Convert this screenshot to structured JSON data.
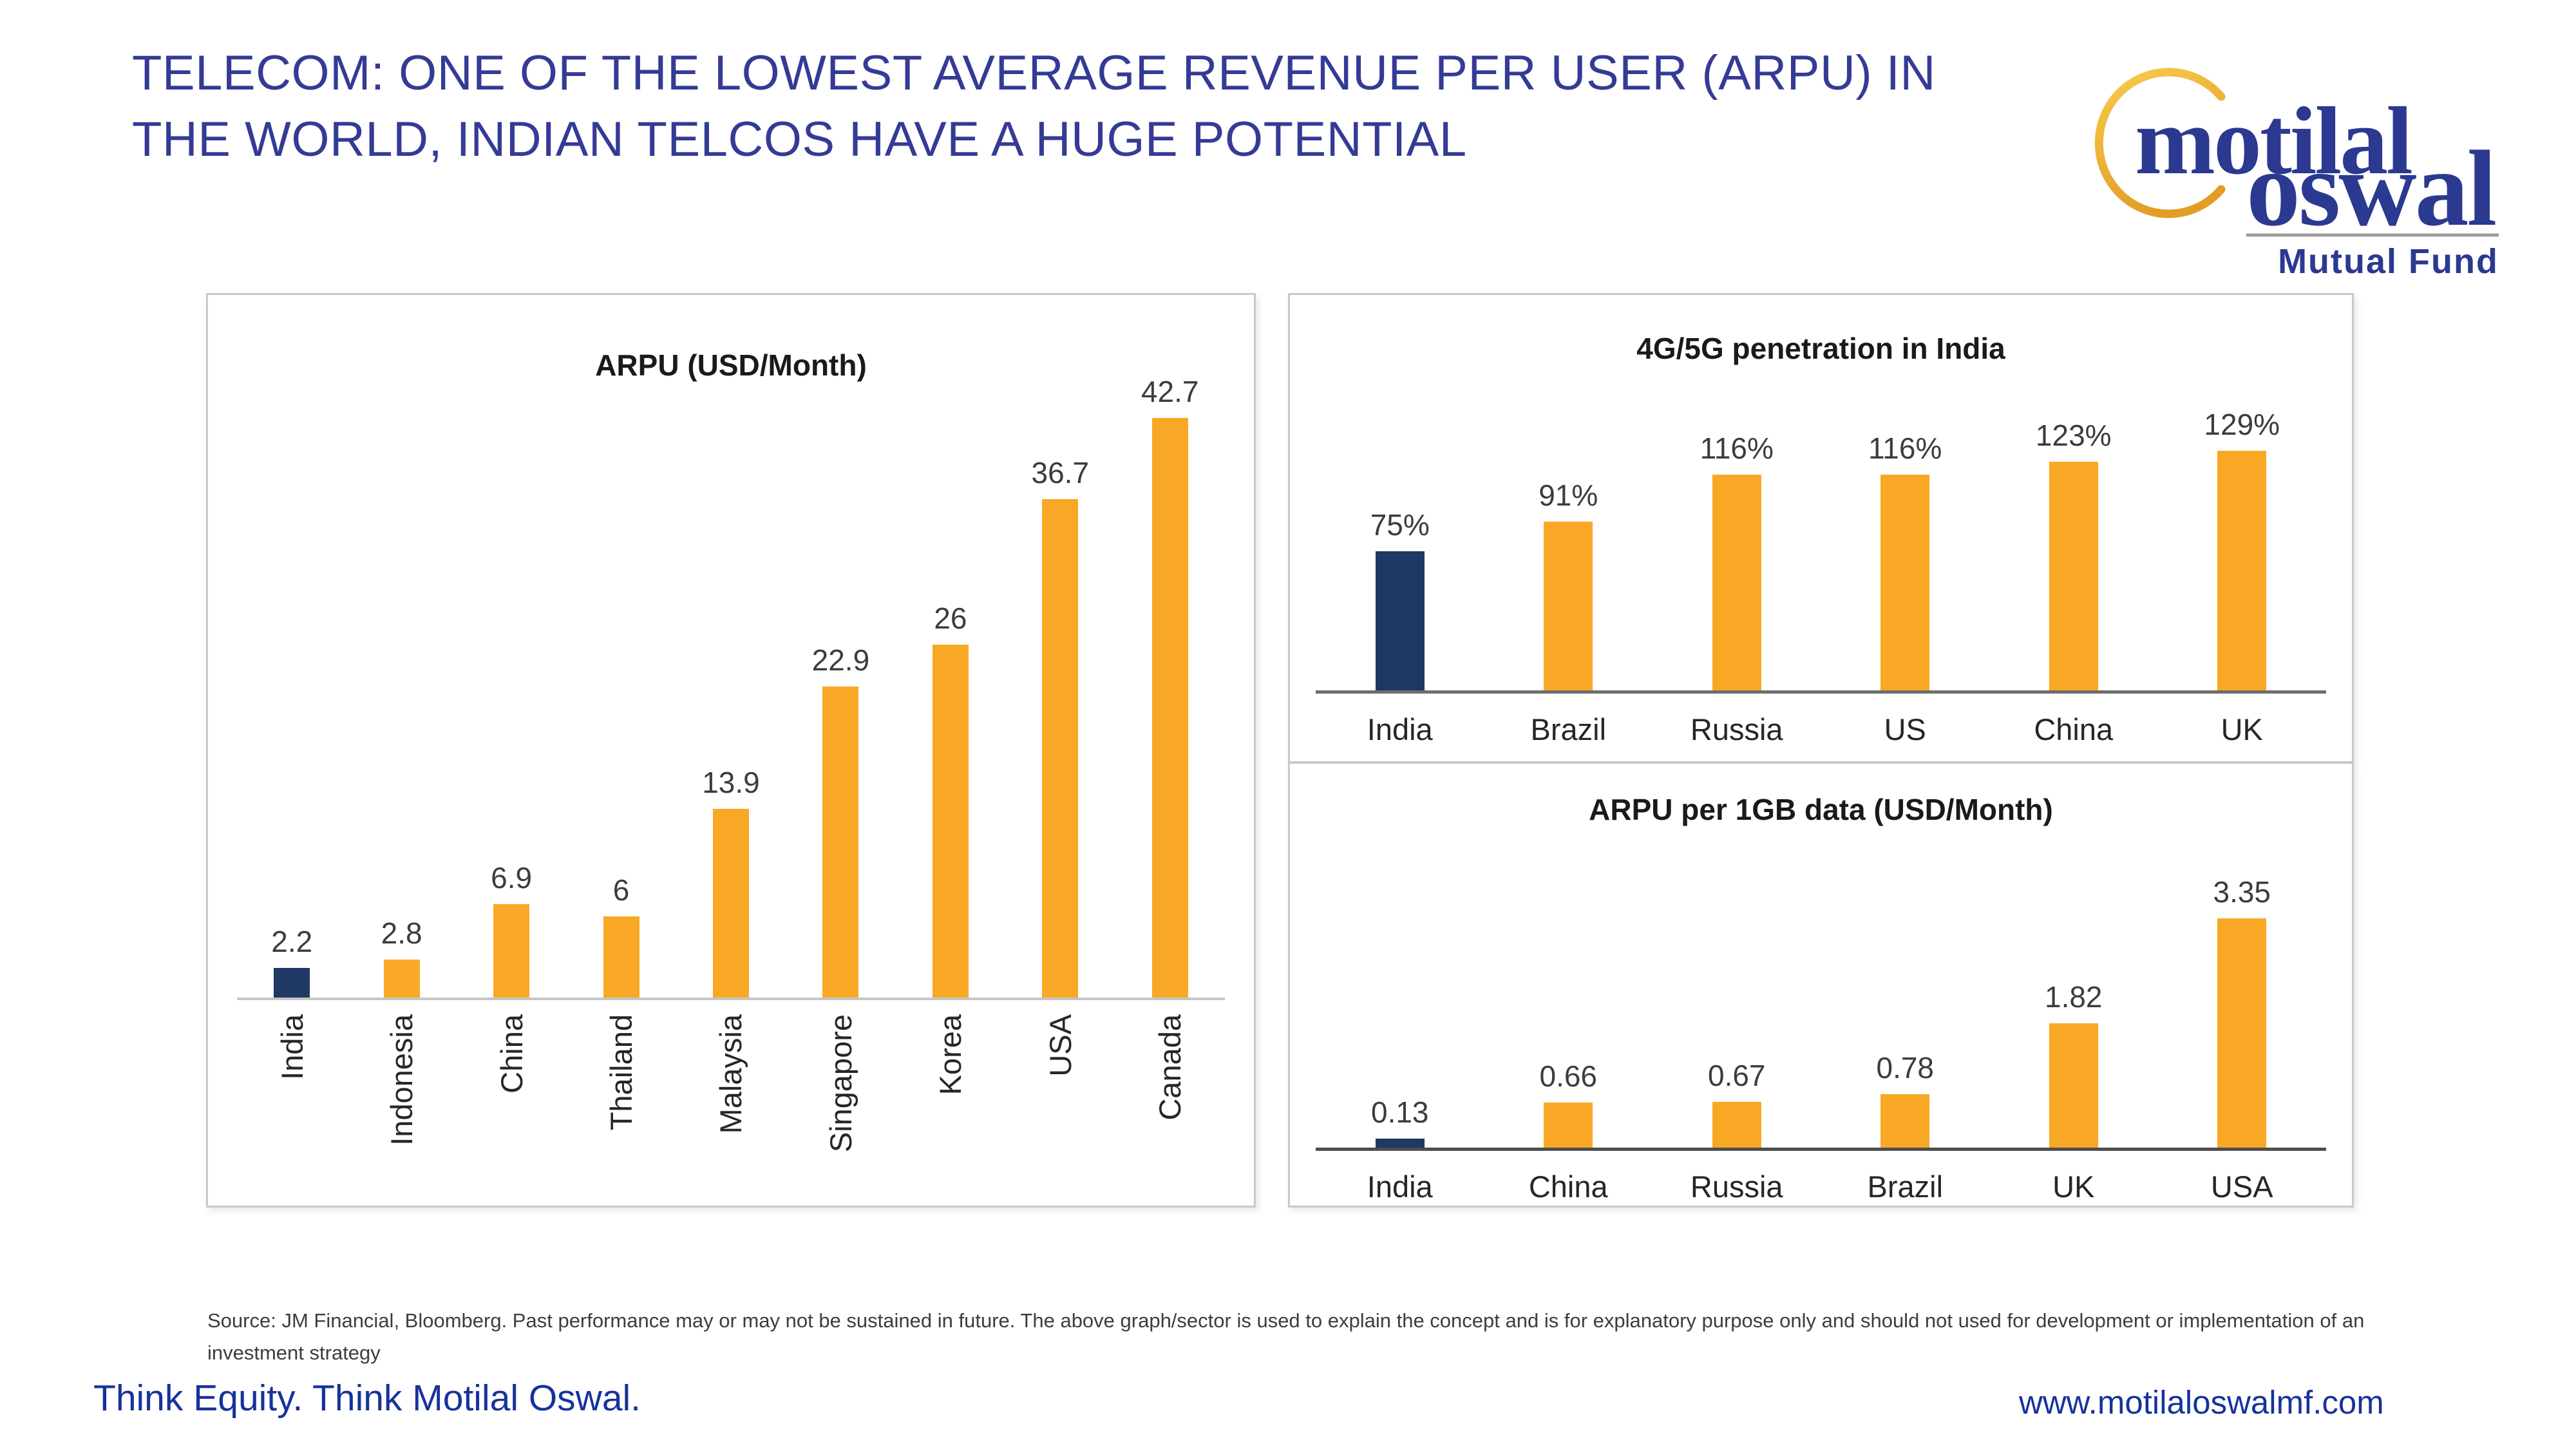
{
  "slide": {
    "title_lines": [
      "TELECOM: ONE OF THE LOWEST AVERAGE REVENUE PER USER (ARPU) IN",
      "THE WORLD, INDIAN TELCOS HAVE A HUGE POTENTIAL"
    ]
  },
  "logo": {
    "word_top": "motilal",
    "word_bottom": "oswal",
    "subtitle": "Mutual Fund"
  },
  "chart_data": [
    {
      "type": "bar",
      "title": "ARPU (USD/Month)",
      "categories": [
        "India",
        "Indonesia",
        "China",
        "Thailand",
        "Malaysia",
        "Singapore",
        "Korea",
        "USA",
        "Canada"
      ],
      "values": [
        2.2,
        2.8,
        6.9,
        6,
        13.9,
        22.9,
        26,
        36.7,
        42.7
      ],
      "labels": [
        "2.2",
        "2.8",
        "6.9",
        "6",
        "13.9",
        "22.9",
        "26",
        "36.7",
        "42.7"
      ],
      "highlight_index": 0,
      "highlight_color": "#1F3864",
      "bar_color": "#F9A826",
      "xlabel": "",
      "ylabel": "",
      "ylim": [
        0,
        42.7
      ],
      "grid": false,
      "legend": "none",
      "x_tick_rotation": 90
    },
    {
      "type": "bar",
      "title": "4G/5G penetration in India",
      "categories": [
        "India",
        "Brazil",
        "Russia",
        "US",
        "China",
        "UK"
      ],
      "values": [
        75,
        91,
        116,
        116,
        123,
        129
      ],
      "labels": [
        "75%",
        "91%",
        "116%",
        "116%",
        "123%",
        "129%"
      ],
      "highlight_index": 0,
      "highlight_color": "#1F3864",
      "bar_color": "#F9A826",
      "xlabel": "",
      "ylabel": "",
      "ylim": [
        0,
        129
      ],
      "grid": false,
      "legend": "none",
      "x_tick_rotation": 0
    },
    {
      "type": "bar",
      "title": "ARPU per 1GB data (USD/Month)",
      "categories": [
        "India",
        "China",
        "Russia",
        "Brazil",
        "UK",
        "USA"
      ],
      "values": [
        0.13,
        0.66,
        0.67,
        0.78,
        1.82,
        3.35
      ],
      "labels": [
        "0.13",
        "0.66",
        "0.67",
        "0.78",
        "1.82",
        "3.35"
      ],
      "highlight_index": 0,
      "highlight_color": "#1F3864",
      "bar_color": "#F9A826",
      "xlabel": "",
      "ylabel": "",
      "ylim": [
        0,
        3.35
      ],
      "grid": false,
      "legend": "none",
      "x_tick_rotation": 0
    }
  ],
  "footer": {
    "source": "Source: JM Financial, Bloomberg. Past performance may or may not be sustained in future. The above graph/sector is used to explain the concept and is for explanatory purpose only and should not used for development or implementation of an investment strategy",
    "tagline": "Think Equity. Think Motilal Oswal.",
    "website": "www.motilaloswalmf.com"
  },
  "colors": {
    "title-blue": "#343B95",
    "brand-blue": "#2B3990",
    "tagline-blue": "#16339B",
    "orange": "#F9A826",
    "navy": "#1F3864",
    "panel-border": "#C9C9C9",
    "axis-light": "#C6C6C6",
    "axis-mid": "#6E6E6E",
    "axis-dark": "#4D4D4D"
  }
}
